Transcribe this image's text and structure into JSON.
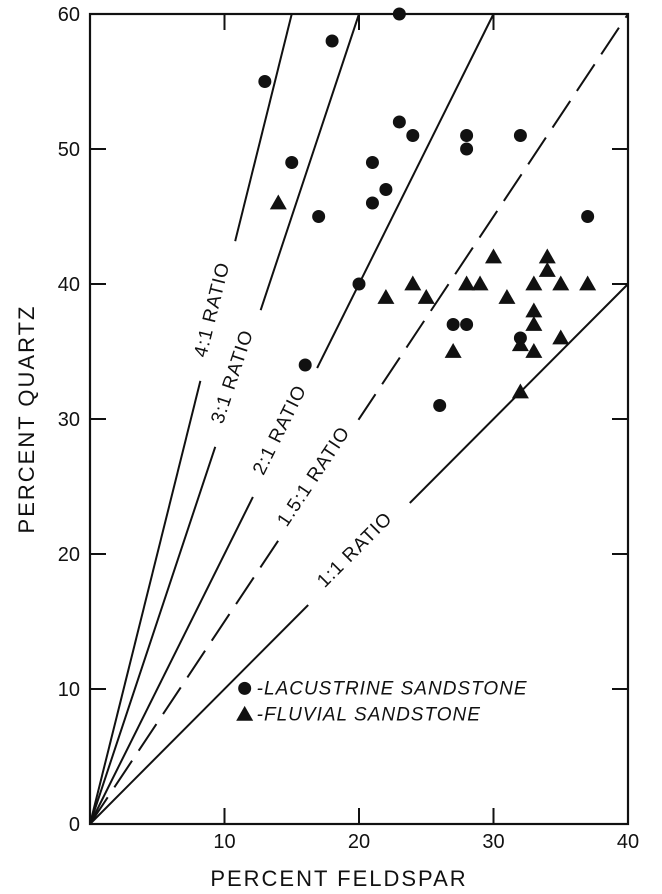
{
  "chart_data": {
    "type": "scatter",
    "title": "",
    "xlabel": "PERCENT FELDSPAR",
    "ylabel": "PERCENT QUARTZ",
    "xlim": [
      0,
      40
    ],
    "ylim": [
      0,
      60
    ],
    "x_ticks": [
      0,
      10,
      20,
      30,
      40
    ],
    "x_tick_labels": [
      "",
      "10",
      "20",
      "30",
      "40"
    ],
    "y_ticks": [
      0,
      10,
      20,
      30,
      40,
      50,
      60
    ],
    "y_tick_labels": [
      "0",
      "10",
      "20",
      "30",
      "40",
      "50",
      "60"
    ],
    "grid": false,
    "legend_position": "bottom-right",
    "legend": [
      {
        "marker": "circle",
        "label": "-LACUSTRINE SANDSTONE"
      },
      {
        "marker": "triangle",
        "label": "-FLUVIAL SANDSTONE"
      }
    ],
    "reference_lines": [
      {
        "label": "4:1 RATIO",
        "ratio": 4,
        "style": "solid"
      },
      {
        "label": "3:1 RATIO",
        "ratio": 3,
        "style": "solid"
      },
      {
        "label": "2:1 RATIO",
        "ratio": 2,
        "style": "solid"
      },
      {
        "label": "1.5:1 RATIO",
        "ratio": 1.5,
        "style": "dashed"
      },
      {
        "label": "1:1 RATIO",
        "ratio": 1,
        "style": "solid"
      }
    ],
    "series": [
      {
        "name": "LACUSTRINE SANDSTONE",
        "marker": "circle",
        "points": [
          [
            13,
            55
          ],
          [
            15,
            49
          ],
          [
            16,
            34
          ],
          [
            17,
            45
          ],
          [
            18,
            58
          ],
          [
            20,
            40
          ],
          [
            21,
            49
          ],
          [
            21,
            46
          ],
          [
            22,
            47
          ],
          [
            23,
            60
          ],
          [
            23,
            52
          ],
          [
            24,
            51
          ],
          [
            26,
            31
          ],
          [
            27,
            37
          ],
          [
            28,
            51
          ],
          [
            28,
            50
          ],
          [
            28,
            37
          ],
          [
            32,
            51
          ],
          [
            32,
            36
          ],
          [
            37,
            45
          ]
        ]
      },
      {
        "name": "FLUVIAL SANDSTONE",
        "marker": "triangle",
        "points": [
          [
            14,
            46
          ],
          [
            22,
            39
          ],
          [
            24,
            40
          ],
          [
            25,
            39
          ],
          [
            27,
            35
          ],
          [
            28,
            40
          ],
          [
            29,
            40
          ],
          [
            30,
            42
          ],
          [
            31,
            39
          ],
          [
            32,
            35.5
          ],
          [
            32,
            32
          ],
          [
            33,
            40
          ],
          [
            33,
            38
          ],
          [
            33,
            37
          ],
          [
            33,
            35
          ],
          [
            34,
            42
          ],
          [
            34,
            41
          ],
          [
            35,
            40
          ],
          [
            35,
            36
          ],
          [
            37,
            40
          ]
        ]
      }
    ]
  }
}
